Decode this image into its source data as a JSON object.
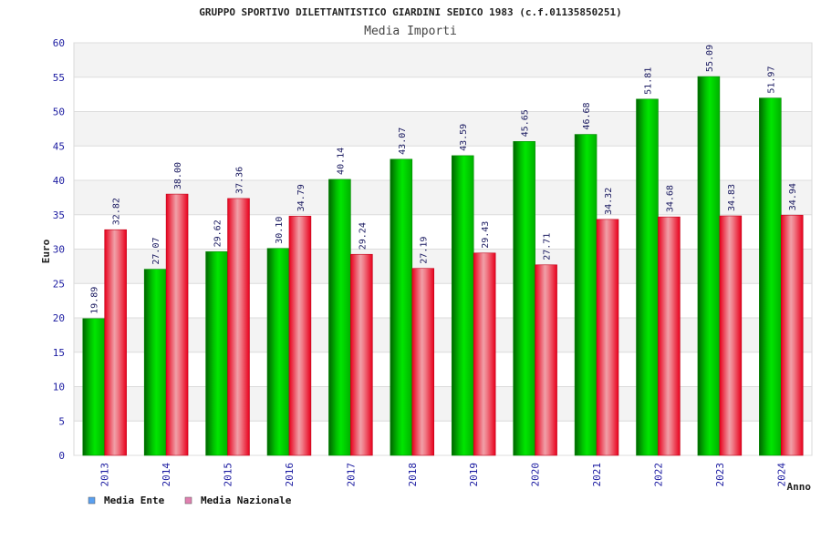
{
  "chart_data": {
    "type": "bar",
    "title": "GRUPPO SPORTIVO DILETTANTISTICO GIARDINI SEDICO 1983 (c.f.01135850251)",
    "subtitle": "Media Importi",
    "xlabel": "Anno",
    "ylabel": "Euro",
    "ylim": [
      0,
      60
    ],
    "yticks": [
      0,
      5,
      10,
      15,
      20,
      25,
      30,
      35,
      40,
      45,
      50,
      55,
      60
    ],
    "categories": [
      "2013",
      "2014",
      "2015",
      "2016",
      "2017",
      "2018",
      "2019",
      "2020",
      "2021",
      "2022",
      "2023",
      "2024"
    ],
    "series": [
      {
        "name": "Media Ente",
        "color": "#00b400",
        "legend_color": "#5aa0f0",
        "values": [
          19.89,
          27.07,
          29.62,
          30.1,
          40.14,
          43.07,
          43.59,
          45.65,
          46.68,
          51.81,
          55.09,
          51.97
        ],
        "labels": [
          "19.89",
          "27.07",
          "29.62",
          "30.10",
          "40.14",
          "43.07",
          "43.59",
          "45.65",
          "46.68",
          "51.81",
          "55.09",
          "51.97"
        ]
      },
      {
        "name": "Media Nazionale",
        "color": "#e8102a",
        "legend_color": "#e080b0",
        "values": [
          32.82,
          38.0,
          37.36,
          34.79,
          29.24,
          27.19,
          29.43,
          27.71,
          34.32,
          34.68,
          34.83,
          34.94
        ],
        "labels": [
          "32.82",
          "38.00",
          "37.36",
          "34.79",
          "29.24",
          "27.19",
          "29.43",
          "27.71",
          "34.32",
          "34.68",
          "34.83",
          "34.94"
        ]
      }
    ],
    "grid": true,
    "legend": "bottom-left"
  }
}
